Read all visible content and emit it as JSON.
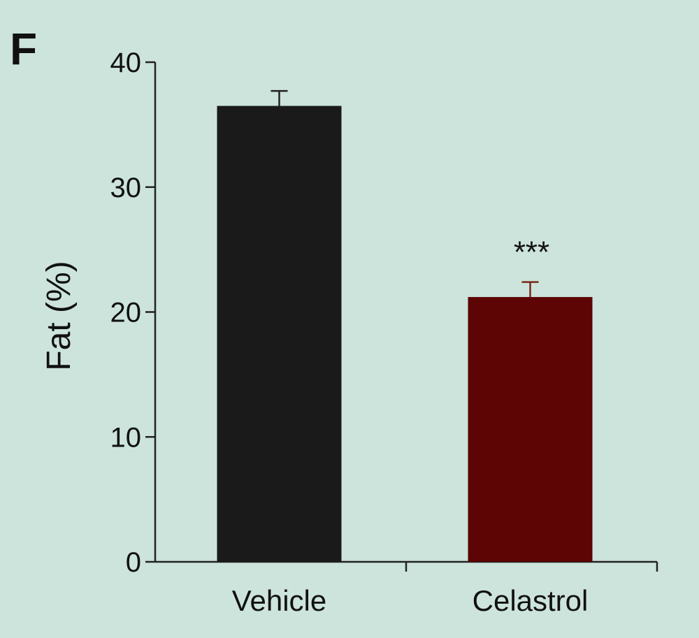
{
  "panel_letter": "F",
  "chart_data": {
    "type": "bar",
    "categories": [
      "Vehicle",
      "Celastrol"
    ],
    "values": [
      36.5,
      21.2
    ],
    "errors": [
      1.2,
      1.2
    ],
    "colors": [
      "#1a1a1a",
      "#5c0504"
    ],
    "annotations": [
      "",
      "***"
    ],
    "xlabel": "",
    "ylabel": "Fat (%)",
    "ylim": [
      0,
      40
    ],
    "yticks": [
      0,
      10,
      20,
      30,
      40
    ],
    "grid": false
  }
}
